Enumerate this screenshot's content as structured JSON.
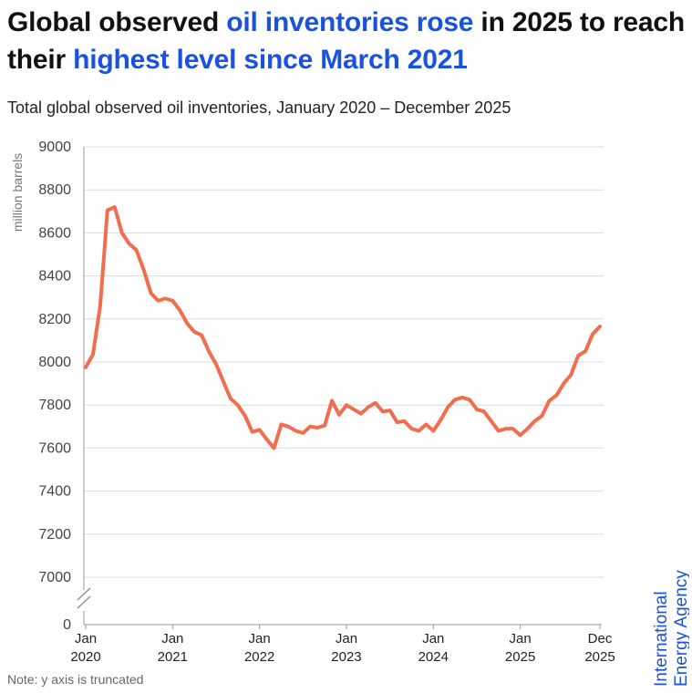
{
  "headline": {
    "part1": "Global observed ",
    "highlight1": "oil inventories rose",
    "part2": " in 2025 to reach their ",
    "highlight2": "highest level since March 2021"
  },
  "colors": {
    "highlight": "#1a52e0",
    "line": "#f26d4f",
    "grid": "#dcdcdc",
    "brand": "#1a52e0"
  },
  "note": "Note: y axis is truncated",
  "brand": {
    "line1": "International",
    "line2": "Energy Agency"
  },
  "chart_data": {
    "type": "line",
    "title": "Total global observed oil inventories, January 2020 – December 2025",
    "ylabel": "million barrels",
    "xlabel": "",
    "ylim": [
      7000,
      9000
    ],
    "y_axis_break": true,
    "y_baseline_label": "0",
    "yticks": [
      7000,
      7200,
      7400,
      7600,
      7800,
      8000,
      8200,
      8400,
      8600,
      8800,
      9000
    ],
    "xticks": [
      {
        "index": 0,
        "line1": "Jan",
        "line2": "2020"
      },
      {
        "index": 12,
        "line1": "Jan",
        "line2": "2021"
      },
      {
        "index": 24,
        "line1": "Jan",
        "line2": "2022"
      },
      {
        "index": 36,
        "line1": "Jan",
        "line2": "2023"
      },
      {
        "index": 48,
        "line1": "Jan",
        "line2": "2024"
      },
      {
        "index": 60,
        "line1": "Jan",
        "line2": "2025"
      },
      {
        "index": 71,
        "line1": "Dec",
        "line2": "2025"
      }
    ],
    "series": [
      {
        "name": "Total global observed oil inventories",
        "start": "2020-01",
        "values": [
          7975,
          8035,
          8260,
          8705,
          8720,
          8600,
          8550,
          8520,
          8430,
          8320,
          8285,
          8295,
          8285,
          8240,
          8180,
          8140,
          8125,
          8050,
          7990,
          7910,
          7830,
          7800,
          7750,
          7675,
          7685,
          7640,
          7600,
          7710,
          7700,
          7680,
          7670,
          7700,
          7695,
          7705,
          7820,
          7755,
          7800,
          7780,
          7760,
          7790,
          7810,
          7770,
          7775,
          7720,
          7725,
          7690,
          7680,
          7710,
          7680,
          7730,
          7790,
          7825,
          7835,
          7825,
          7780,
          7770,
          7725,
          7680,
          7690,
          7690,
          7660,
          7690,
          7725,
          7750,
          7820,
          7845,
          7900,
          7940,
          8030,
          8050,
          8130,
          8165
        ]
      }
    ]
  }
}
